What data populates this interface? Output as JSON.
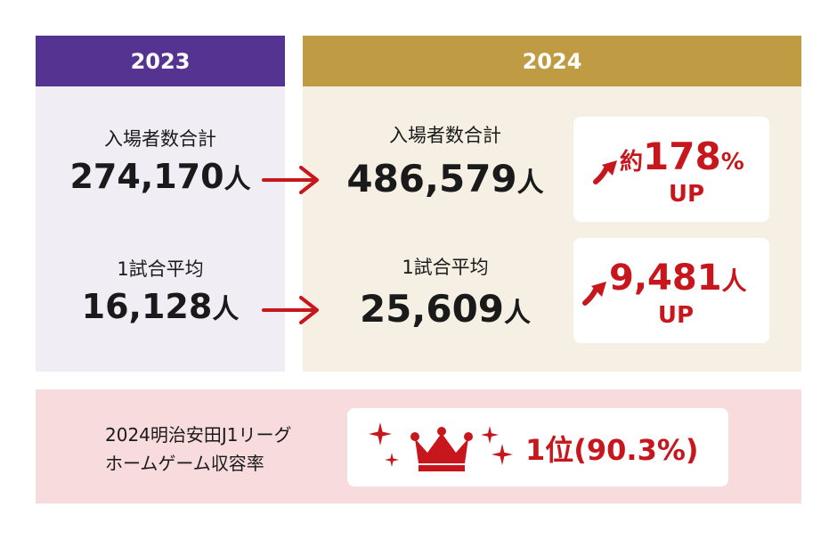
{
  "left": {
    "year": "2023",
    "total_label": "入場者数合計",
    "total_value": "274,170",
    "total_unit": "人",
    "avg_label": "1試合平均",
    "avg_value": "16,128",
    "avg_unit": "人"
  },
  "right": {
    "year": "2024",
    "total_label": "入場者数合計",
    "total_value": "486,579",
    "total_unit": "人",
    "avg_label": "1試合平均",
    "avg_value": "25,609",
    "avg_unit": "人"
  },
  "badges": {
    "total": {
      "prefix": "約",
      "value": "178",
      "unit": "%",
      "suffix": "UP"
    },
    "avg": {
      "value": "9,481",
      "unit": "人",
      "suffix": "UP"
    }
  },
  "ranking": {
    "line1": "2024明治安田J1リーグ",
    "line2": "ホームゲーム収容率",
    "rank": "1位(90.3%)"
  },
  "colors": {
    "purple": "#553390",
    "purple_bg": "#f0edf5",
    "gold": "#bf9b43",
    "gold_bg": "#f5efe4",
    "red": "#c8161d",
    "pink_bg": "#f7dbdd"
  },
  "icons": [
    "right-arrow-icon",
    "up-arrow-icon",
    "crown-icon",
    "sparkle-icon"
  ]
}
